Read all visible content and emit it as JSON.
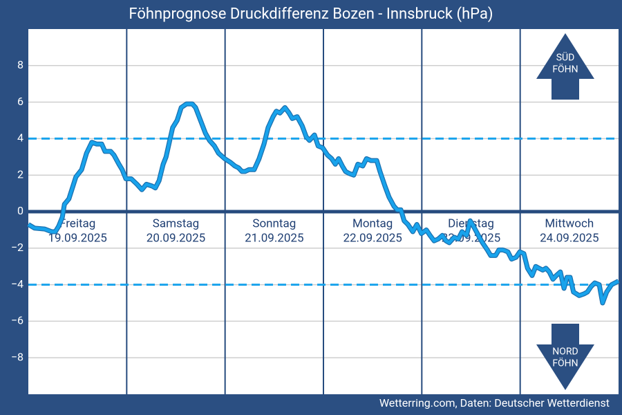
{
  "chart_data": {
    "type": "line",
    "title": "Föhnprognose Druckdifferenz Bozen - Innsbruck (hPa)",
    "source": "Wetterring.com, Daten: Deutscher Wetterdienst",
    "days": [
      {
        "name": "Freitag",
        "date": "19.09.2025"
      },
      {
        "name": "Samstag",
        "date": "20.09.2025"
      },
      {
        "name": "Sonntag",
        "date": "21.09.2025"
      },
      {
        "name": "Montag",
        "date": "22.09.2025"
      },
      {
        "name": "Dienstag",
        "date": "23.09.2025"
      },
      {
        "name": "Mittwoch",
        "date": "24.09.2025"
      }
    ],
    "annotations": {
      "south": [
        "SÜD",
        "FÖHN"
      ],
      "north": [
        "NORD",
        "FÖHN"
      ]
    },
    "thresholds": [
      4,
      -4
    ],
    "ylim": [
      -10,
      10
    ],
    "yticks": [
      {
        "value": -8,
        "label": "−8"
      },
      {
        "value": -6,
        "label": "−6"
      },
      {
        "value": -4,
        "label": "−4"
      },
      {
        "value": -2,
        "label": "−2"
      },
      0,
      2,
      4,
      6,
      8
    ],
    "xlim": [
      0,
      144
    ],
    "grid": true,
    "color": "#18a3ec",
    "x": [
      0,
      1.5,
      4,
      5.7,
      6.6,
      7.4,
      8.3,
      8.8,
      9.9,
      11.6,
      13,
      14.2,
      15.5,
      16.7,
      17.9,
      18.7,
      20.1,
      20.9,
      22.1,
      22.9,
      23.8,
      25.1,
      26.5,
      27.7,
      28.8,
      30.2,
      31,
      31.9,
      32.9,
      33.6,
      34.4,
      35.2,
      36.3,
      37.3,
      38.6,
      40,
      40.8,
      42,
      43.2,
      44.2,
      45.4,
      46.4,
      47.9,
      49.3,
      50.4,
      51.3,
      52.1,
      52.9,
      53.8,
      55.1,
      56.3,
      57.5,
      58.5,
      59.7,
      60.5,
      61.4,
      62.6,
      63.6,
      64.4,
      65.6,
      66.8,
      67.8,
      68.6,
      69.8,
      70.7,
      71.8,
      73,
      74,
      74.9,
      75.7,
      76.6,
      77.4,
      78.2,
      79.4,
      80.4,
      81.6,
      82.5,
      83.6,
      85,
      85.8,
      87,
      88,
      89.2,
      90,
      90.9,
      91.7,
      92.6,
      93.8,
      94.8,
      95.9,
      97.1,
      98,
      99,
      100,
      101,
      101.9,
      102.7,
      103.9,
      104.9,
      105.8,
      106.9,
      107.8,
      108.6,
      109.8,
      110.8,
      112,
      112.8,
      114,
      114.8,
      115.8,
      117,
      117.9,
      119,
      119.9,
      120.9,
      121.8,
      122.9,
      123.8,
      124.6,
      125.5,
      126.3,
      127.1,
      128,
      128.8,
      129.8,
      130.7,
      131.4,
      132.2,
      133,
      134.4,
      135.6,
      136.4,
      137.3,
      138.2,
      139.3,
      140.1,
      141.1,
      142.3,
      144
    ],
    "values": [
      -0.7,
      -0.9,
      -0.95,
      -1.1,
      -1.1,
      -0.8,
      -0.3,
      0.4,
      0.7,
      1.9,
      2.3,
      3.2,
      3.8,
      3.7,
      3.7,
      3.3,
      3.3,
      3.1,
      2.6,
      2.3,
      1.8,
      1.8,
      1.5,
      1.2,
      1.5,
      1.4,
      1.3,
      1.7,
      2.6,
      3,
      3.8,
      4.6,
      5,
      5.7,
      5.9,
      5.9,
      5.7,
      5,
      4.3,
      3.9,
      3.6,
      3.2,
      2.9,
      2.7,
      2.5,
      2.4,
      2.2,
      2.2,
      2.3,
      2.3,
      2.9,
      3.7,
      4.6,
      5.2,
      5.5,
      5.4,
      5.7,
      5.4,
      5.1,
      5.2,
      4.7,
      4.1,
      3.9,
      4.2,
      3.6,
      3.5,
      3.1,
      2.9,
      2.6,
      2.9,
      2.5,
      2.2,
      2.1,
      2,
      2.6,
      2.5,
      2.9,
      2.8,
      2.8,
      2.2,
      1.4,
      0.8,
      0.3,
      0.1,
      0.1,
      -0.5,
      -0.7,
      -1.1,
      -0.7,
      -1.2,
      -1,
      -1.3,
      -1.6,
      -1.5,
      -1.3,
      -1.6,
      -1.7,
      -1.4,
      -1.5,
      -1.1,
      -1.3,
      -0.5,
      -0.8,
      -1.3,
      -1.7,
      -2.1,
      -2.4,
      -2.4,
      -2.1,
      -2.1,
      -2.2,
      -2.6,
      -2.5,
      -2.2,
      -2.3,
      -3.1,
      -3.5,
      -3,
      -3.1,
      -3.2,
      -3.1,
      -3.3,
      -3.7,
      -3.5,
      -3.3,
      -4.2,
      -3.6,
      -3.6,
      -4.4,
      -4.6,
      -4.5,
      -4.4,
      -4.1,
      -3.9,
      -4,
      -5,
      -4.4,
      -4,
      -3.8
    ]
  }
}
